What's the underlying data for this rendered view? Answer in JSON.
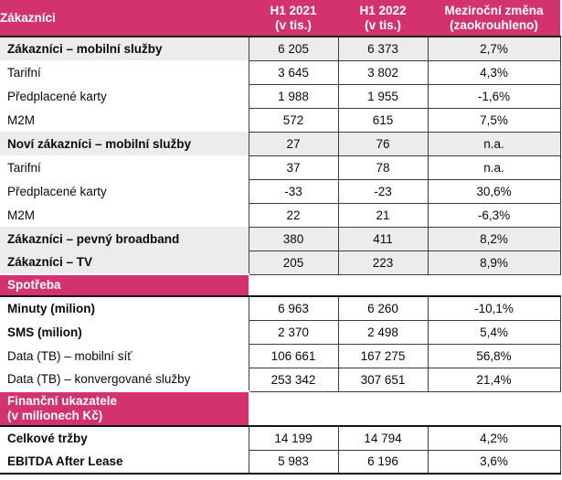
{
  "colors": {
    "brand_magenta": "#d2336e",
    "row_highlight_gray": "#ececec",
    "header_text": "#ffffff"
  },
  "header": {
    "col0": "Zákazníci",
    "cols": [
      {
        "line1": "H1 2021",
        "line2": "(v tis.)"
      },
      {
        "line1": "H1 2022",
        "line2": "(v tis.)"
      },
      {
        "line1": "Meziroční změna",
        "line2": "(zaokrouhleno)"
      }
    ]
  },
  "sections": {
    "spotreba": "Spotřeba",
    "finance": "Finanční ukazatele\n(v milionech Kč)"
  },
  "rows": [
    {
      "label": "Zákazníci – mobilní služby",
      "v2021": "6 205",
      "v2022": "6 373",
      "change": "2,7%",
      "bold": true,
      "highlighted": true
    },
    {
      "label": "Tarifní",
      "v2021": "3 645",
      "v2022": "3 802",
      "change": "4,3%",
      "bold": false,
      "highlighted": false
    },
    {
      "label": "Předplacené karty",
      "v2021": "1 988",
      "v2022": "1 955",
      "change": "-1,6%",
      "bold": false,
      "highlighted": false
    },
    {
      "label": "M2M",
      "v2021": "572",
      "v2022": "615",
      "change": "7,5%",
      "bold": false,
      "highlighted": false
    },
    {
      "label": "Noví zákazníci – mobilní služby",
      "v2021": "27",
      "v2022": "76",
      "change": "n.a.",
      "bold": true,
      "highlighted": true
    },
    {
      "label": "Tarifní",
      "v2021": "37",
      "v2022": "78",
      "change": "n.a.",
      "bold": false,
      "highlighted": false
    },
    {
      "label": "Předplacené karty",
      "v2021": "-33",
      "v2022": "-23",
      "change": "30,6%",
      "bold": false,
      "highlighted": false
    },
    {
      "label": "M2M",
      "v2021": "22",
      "v2022": "21",
      "change": "-6,3%",
      "bold": false,
      "highlighted": false
    },
    {
      "label": "Zákazníci – pevný broadband",
      "v2021": "380",
      "v2022": "411",
      "change": "8,2%",
      "bold": true,
      "highlighted": true
    },
    {
      "label": "Zákazníci – TV",
      "v2021": "205",
      "v2022": "223",
      "change": "8,9%",
      "bold": true,
      "highlighted": true
    },
    {
      "label": "Minuty (milion)",
      "v2021": "6 963",
      "v2022": "6 260",
      "change": "-10,1%",
      "bold": true,
      "highlighted": false
    },
    {
      "label": "SMS (milion)",
      "v2021": "2 370",
      "v2022": "2 498",
      "change": "5,4%",
      "bold": true,
      "highlighted": false
    },
    {
      "label": "Data (TB) – mobilní síť",
      "v2021": "106 661",
      "v2022": "167 275",
      "change": "56,8%",
      "bold": false,
      "highlighted": false
    },
    {
      "label": "Data (TB) – konvergované služby",
      "v2021": "253 342",
      "v2022": "307 651",
      "change": "21,4%",
      "bold": false,
      "highlighted": false
    },
    {
      "label": "Celkové tržby",
      "v2021": "14 199",
      "v2022": "14 794",
      "change": "4,2%",
      "bold": true,
      "highlighted": false
    },
    {
      "label": "EBITDA After Lease",
      "v2021": "5 983",
      "v2022": "6 196",
      "change": "3,6%",
      "bold": true,
      "highlighted": false
    }
  ]
}
